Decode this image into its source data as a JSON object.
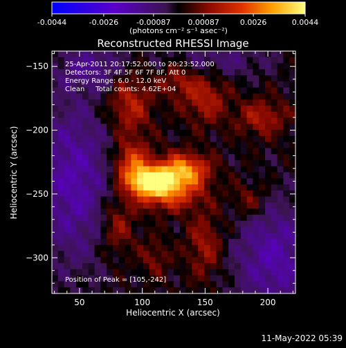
{
  "chart_data": {
    "type": "heatmap",
    "title": "Reconstructed RHESSI Image",
    "xlabel": "Heliocentric X (arcsec)",
    "ylabel": "Heliocentric Y (arcsec)",
    "xlim": [
      28,
      222
    ],
    "ylim": [
      -328,
      -138
    ],
    "x_ticks": [
      50,
      100,
      150,
      200
    ],
    "y_ticks": [
      -150,
      -200,
      -250,
      -300
    ],
    "colorbar": {
      "ticks": [
        "-0.0044",
        "-0.0026",
        "-0.00087",
        "0.00087",
        "0.0026",
        "0.0044"
      ],
      "tick_values": [
        -0.0044,
        -0.0026,
        -0.00087,
        0.00087,
        0.0026,
        0.0044
      ],
      "range": [
        -0.0044,
        0.0044
      ],
      "unit_label": "(photons cm⁻² s⁻¹ asec⁻²)"
    },
    "annotations": [
      "25-Apr-2011 20:17:52.000 to 20:23:52.000",
      "Detectors: 3F 4F 5F 6F 7F 8F, Att 0",
      "Energy Range: 6.0 - 12.0 keV",
      "Clean     Total counts: 4.62E+04"
    ],
    "peak_label": "Position of Peak = [105,-242]",
    "peak": [
      105,
      -242
    ],
    "peak_value": 0.0044,
    "sources": [
      {
        "x": 108,
        "y": -240,
        "sx": 11,
        "sy": 7,
        "amp": 1.0
      },
      {
        "x": 132,
        "y": -232,
        "sx": 14,
        "sy": 9,
        "amp": 0.75
      },
      {
        "x": 92,
        "y": -228,
        "sx": 10,
        "sy": 12,
        "amp": 0.55
      },
      {
        "x": 120,
        "y": -250,
        "sx": 18,
        "sy": 9,
        "amp": 0.5
      },
      {
        "x": 90,
        "y": -180,
        "sx": 12,
        "sy": 18,
        "amp": 0.35
      },
      {
        "x": 150,
        "y": -175,
        "sx": 12,
        "sy": 14,
        "amp": 0.32
      },
      {
        "x": 195,
        "y": -190,
        "sx": 14,
        "sy": 10,
        "amp": 0.3
      },
      {
        "x": 128,
        "y": -160,
        "sx": 10,
        "sy": 10,
        "amp": 0.26
      },
      {
        "x": 80,
        "y": -275,
        "sx": 10,
        "sy": 16,
        "amp": 0.28
      },
      {
        "x": 150,
        "y": -290,
        "sx": 10,
        "sy": 18,
        "amp": 0.28
      },
      {
        "x": 185,
        "y": -255,
        "sx": 10,
        "sy": 10,
        "amp": 0.22
      },
      {
        "x": 110,
        "y": -300,
        "sx": 8,
        "sy": 10,
        "amp": 0.2
      }
    ],
    "negatives": [
      {
        "x": 45,
        "y": -240,
        "sx": 22,
        "sy": 45,
        "amp": 0.38
      },
      {
        "x": 205,
        "y": -300,
        "sx": 22,
        "sy": 30,
        "amp": 0.38
      },
      {
        "x": 160,
        "y": -145,
        "sx": 30,
        "sy": 10,
        "amp": 0.2
      },
      {
        "x": 60,
        "y": -150,
        "sx": 20,
        "sy": 12,
        "amp": 0.25
      }
    ]
  },
  "footer": {
    "timestamp": "11-May-2022 05:39"
  }
}
